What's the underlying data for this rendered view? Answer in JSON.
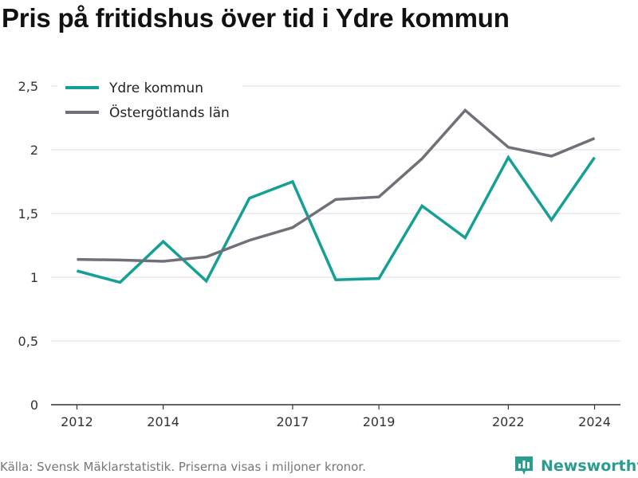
{
  "title": "Pris på fritidshus över tid i Ydre kommun",
  "footer": {
    "source": "Källa: Svensk Mäklarstatistik. Priserna visas i miljoner kronor."
  },
  "brand": {
    "name": "Newsworthy",
    "logo_icon": "bar-chart-logo-icon",
    "color": "#2a9d8f"
  },
  "chart_data": {
    "type": "line",
    "x": [
      2012,
      2013,
      2014,
      2015,
      2016,
      2017,
      2018,
      2019,
      2020,
      2021,
      2022,
      2023,
      2024
    ],
    "x_tick_values": [
      2012,
      2014,
      2017,
      2019,
      2022,
      2024
    ],
    "x_tick_labels": [
      "2012",
      "2014",
      "2017",
      "2019",
      "2022",
      "2024"
    ],
    "xlim": [
      2011.4,
      2024.6
    ],
    "ylim": [
      0,
      2.5
    ],
    "y_tick_values": [
      0,
      0.5,
      1,
      1.5,
      2,
      2.5
    ],
    "y_tick_labels": [
      "0",
      "0,5",
      "1",
      "1,5",
      "2",
      "2,5"
    ],
    "grid": true,
    "legend_position": "top-left",
    "series": [
      {
        "name": "Ydre kommun",
        "color": "#14a095",
        "values": [
          1.05,
          0.96,
          1.28,
          0.97,
          1.62,
          1.75,
          0.98,
          0.99,
          1.56,
          1.31,
          1.94,
          1.45,
          1.94
        ]
      },
      {
        "name": "Östergötlands län",
        "color": "#707078",
        "values": [
          1.14,
          1.135,
          1.125,
          1.16,
          1.29,
          1.39,
          1.61,
          1.63,
          1.93,
          2.31,
          2.02,
          1.95,
          2.09
        ]
      }
    ]
  }
}
